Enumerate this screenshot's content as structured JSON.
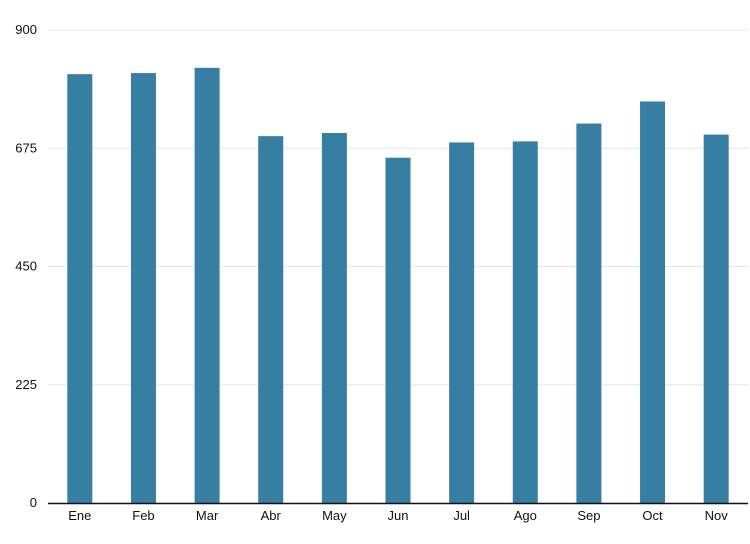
{
  "chart_data": {
    "type": "bar",
    "categories": [
      "Ene",
      "Feb",
      "Mar",
      "Abr",
      "May",
      "Jun",
      "Jul",
      "Ago",
      "Sep",
      "Oct",
      "Nov"
    ],
    "values": [
      816,
      818,
      828,
      698,
      704,
      657,
      686,
      688,
      722,
      764,
      701
    ],
    "title": "",
    "xlabel": "",
    "ylabel": "",
    "ylim": [
      0,
      900
    ],
    "yticks": [
      0,
      225,
      450,
      675,
      900
    ],
    "grid": true,
    "bar_color": "#377ea3",
    "grid_color": "#e6e6e6",
    "axis_color": "#111111"
  }
}
